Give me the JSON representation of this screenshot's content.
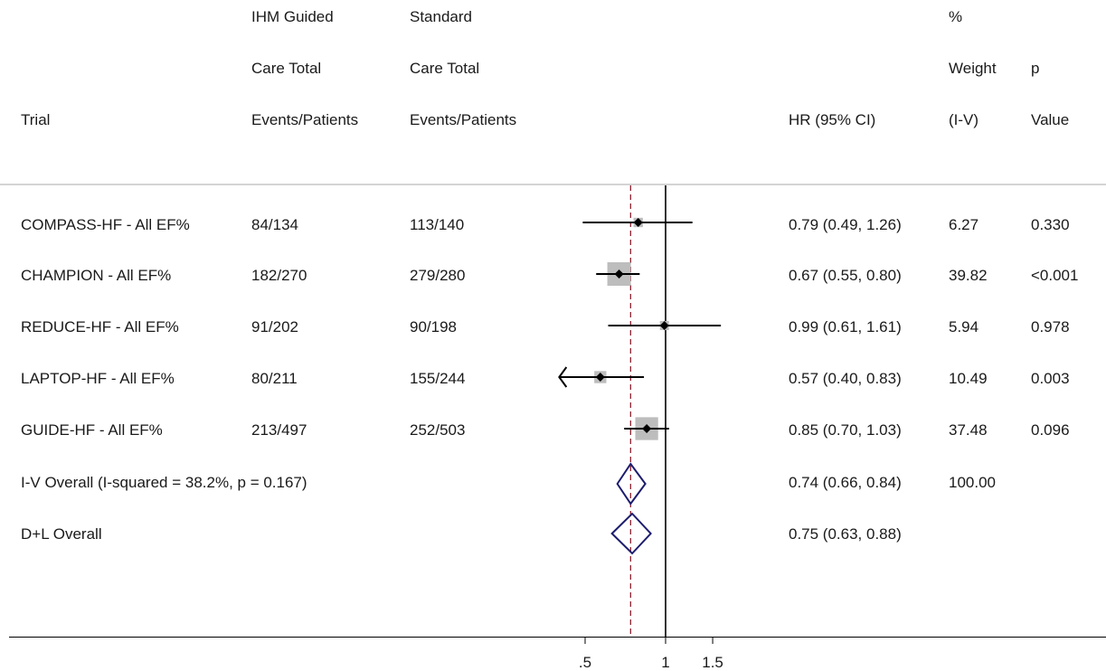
{
  "header": {
    "col_trial": [
      "Trial"
    ],
    "col_ihm": [
      "IHM Guided",
      "Care Total",
      "Events/Patients"
    ],
    "col_std": [
      "Standard",
      "Care Total",
      "Events/Patients"
    ],
    "col_hr": [
      "HR (95% CI)"
    ],
    "col_weight": [
      "%",
      "Weight",
      "(I-V)"
    ],
    "col_p": [
      "p",
      "Value"
    ]
  },
  "rows": [
    {
      "label": "COMPASS-HF - All EF%",
      "ihm": "84/134",
      "std": "113/140",
      "hr_text": "0.79 (0.49, 1.26)",
      "weight": "6.27",
      "p": "0.330"
    },
    {
      "label": "CHAMPION - All EF%",
      "ihm": "182/270",
      "std": "279/280",
      "hr_text": "0.67 (0.55, 0.80)",
      "weight": "39.82",
      "p": "<0.001"
    },
    {
      "label": "REDUCE-HF - All EF%",
      "ihm": "91/202",
      "std": "90/198",
      "hr_text": "0.99 (0.61, 1.61)",
      "weight": "5.94",
      "p": "0.978"
    },
    {
      "label": "LAPTOP-HF - All EF%",
      "ihm": "80/211",
      "std": "155/244",
      "hr_text": "0.57 (0.40, 0.83)",
      "weight": "10.49",
      "p": "0.003"
    },
    {
      "label": "GUIDE-HF - All EF%",
      "ihm": "213/497",
      "std": "252/503",
      "hr_text": "0.85 (0.70, 1.03)",
      "weight": "37.48",
      "p": "0.096"
    }
  ],
  "overall": [
    {
      "label": "I-V Overall  (I-squared = 38.2%, p = 0.167)",
      "hr_text": "0.74 (0.66, 0.84)",
      "weight": "100.00"
    },
    {
      "label": "D+L Overall",
      "hr_text": "0.75 (0.63, 0.88)",
      "weight": ""
    }
  ],
  "chart_data": {
    "type": "forest",
    "x_scale": "log",
    "xlim": [
      0.4,
      1.7
    ],
    "xticks": [
      0.5,
      1,
      1.5
    ],
    "xtick_labels": [
      ".5",
      "1",
      "1.5"
    ],
    "null_line": 1,
    "overall_line": 0.74,
    "studies": [
      {
        "name": "COMPASS-HF - All EF%",
        "hr": 0.79,
        "lo": 0.49,
        "hi": 1.26,
        "weight": 6.27
      },
      {
        "name": "CHAMPION - All EF%",
        "hr": 0.67,
        "lo": 0.55,
        "hi": 0.8,
        "weight": 39.82
      },
      {
        "name": "REDUCE-HF - All EF%",
        "hr": 0.99,
        "lo": 0.61,
        "hi": 1.61,
        "weight": 5.94
      },
      {
        "name": "LAPTOP-HF - All EF%",
        "hr": 0.57,
        "lo": 0.4,
        "hi": 0.83,
        "weight": 10.49,
        "lo_truncated": true
      },
      {
        "name": "GUIDE-HF - All EF%",
        "hr": 0.85,
        "lo": 0.7,
        "hi": 1.03,
        "weight": 37.48
      }
    ],
    "pooled": [
      {
        "name": "I-V Overall",
        "hr": 0.74,
        "lo": 0.66,
        "hi": 0.84
      },
      {
        "name": "D+L Overall",
        "hr": 0.75,
        "lo": 0.63,
        "hi": 0.88
      }
    ],
    "colors": {
      "ci": "#000000",
      "box": "#bdbdbd",
      "point": "#000000",
      "diamond": "#1c1c6e",
      "overall_line": "#8b2332",
      "null_line": "#000000"
    }
  }
}
